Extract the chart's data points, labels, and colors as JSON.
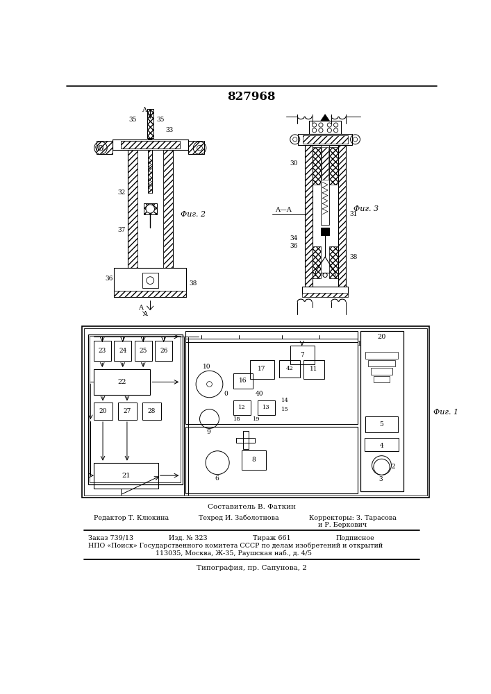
{
  "patent_number": "827968",
  "composer": "Составитель В. Фаткин",
  "editor_label": "Редактор Т. Клюкина",
  "techred_label": "Техред И. Заболотнова",
  "correctors_label": "Корректоры: З. Тарасова",
  "correctors_label2": "и Р. Беркович",
  "order_label": "Заказ 739/13",
  "izd_label": "Изд. № 323",
  "tirazh_label": "Тираж 661",
  "podpisnoe_label": "Подписное",
  "npo_label": "НПО «Поиск» Государственного комитета СССР по делам изобретений и открытий",
  "address_label": "113035, Москва, Ж-35, Раушская наб., д. 4/5",
  "typography_label": "Типография, пр. Сапунова, 2",
  "fig1_label": "Фиг. 1",
  "fig2_label": "Фиг. 2",
  "fig3_label": "Фиг. 3",
  "bg": "#f5f5f0"
}
